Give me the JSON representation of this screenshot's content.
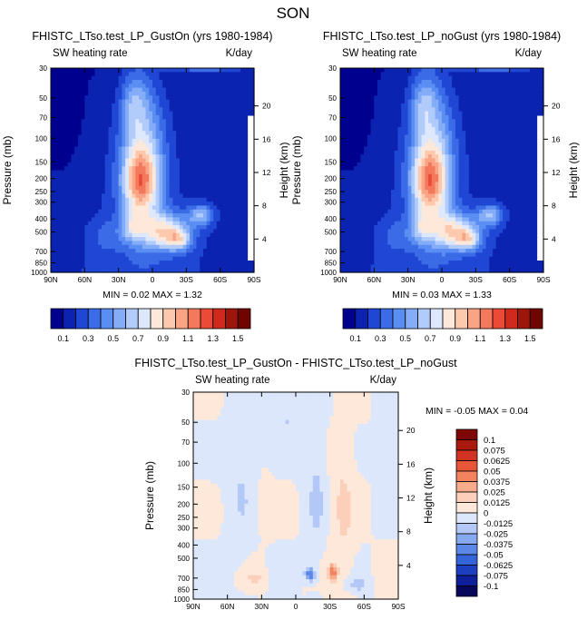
{
  "page_title": "SON",
  "colors": {
    "top_scale": [
      "#00008f",
      "#0b23b0",
      "#1f47d4",
      "#3b6be6",
      "#5b8ef2",
      "#85acf7",
      "#b1cbfa",
      "#dde8fd",
      "#fde8da",
      "#fcc9ae",
      "#f9a484",
      "#f4795c",
      "#ea4a36",
      "#cf2a1c",
      "#9e150c",
      "#700500"
    ],
    "diff_scale": [
      "#07075c",
      "#0d1f9a",
      "#1c3fbf",
      "#3564d8",
      "#5a87e8",
      "#86a9ef",
      "#b3c8f6",
      "#dce7fb",
      "#fde8da",
      "#fbcfb9",
      "#f8ac8c",
      "#f3825f",
      "#e8563a",
      "#d13223",
      "#a9190e",
      "#7e0606"
    ]
  },
  "chart_data": [
    {
      "type": "heatmap",
      "id": "gust_on",
      "title": "FHISTC_LTso.test_LP_GustOn (yrs 1980-1984)",
      "left_subtitle": "SW heating rate",
      "units": "K/day",
      "ylabel": "Pressure (mb)",
      "ylabel_right": "Height (km)",
      "x_ticks": [
        "90N",
        "60N",
        "30N",
        "0",
        "30S",
        "60S",
        "90S"
      ],
      "y_ticks": [
        "30",
        "50",
        "70",
        "100",
        "150",
        "200",
        "250",
        "300",
        "400",
        "500",
        "700",
        "850",
        "1000"
      ],
      "height_ticks": [
        "20",
        "16",
        "12",
        "8",
        "4"
      ],
      "min_max_label": "MIN =  0.02  MAX =  1.32",
      "min": 0.02,
      "max": 1.32,
      "levels": [
        "0.1",
        "0.3",
        "0.5",
        "0.7",
        "0.9",
        "1.1",
        "1.3",
        "1.5"
      ]
    },
    {
      "type": "heatmap",
      "id": "no_gust",
      "title": "FHISTC_LTso.test_LP_noGust (yrs 1980-1984)",
      "left_subtitle": "SW heating rate",
      "units": "K/day",
      "ylabel": "Pressure (mb)",
      "ylabel_right": "Height (km)",
      "x_ticks": [
        "90N",
        "60N",
        "30N",
        "0",
        "30S",
        "60S",
        "90S"
      ],
      "y_ticks": [
        "30",
        "50",
        "70",
        "100",
        "150",
        "200",
        "250",
        "300",
        "400",
        "500",
        "700",
        "850",
        "1000"
      ],
      "height_ticks": [
        "20",
        "16",
        "12",
        "8",
        "4"
      ],
      "min_max_label": "MIN =  0.03  MAX =  1.33",
      "min": 0.03,
      "max": 1.33,
      "levels": [
        "0.1",
        "0.3",
        "0.5",
        "0.7",
        "0.9",
        "1.1",
        "1.3",
        "1.5"
      ]
    },
    {
      "type": "heatmap",
      "id": "difference",
      "title": "FHISTC_LTso.test_LP_GustOn - FHISTC_LTso.test_LP_noGust",
      "left_subtitle": "SW heating rate",
      "units": "K/day",
      "ylabel": "Pressure (mb)",
      "ylabel_right": "Height (km)",
      "x_ticks": [
        "90N",
        "60N",
        "30N",
        "0",
        "30S",
        "60S",
        "90S"
      ],
      "y_ticks": [
        "30",
        "50",
        "70",
        "100",
        "150",
        "200",
        "250",
        "300",
        "400",
        "500",
        "700",
        "850",
        "1000"
      ],
      "height_ticks": [
        "20",
        "16",
        "12",
        "8",
        "4"
      ],
      "min_max_label": "MIN =  -0.05   MAX =   0.04",
      "min": -0.05,
      "max": 0.04,
      "levels": [
        "0.1",
        "0.075",
        "0.0625",
        "0.05",
        "0.0375",
        "0.025",
        "0.0125",
        "0",
        "-0.0125",
        "-0.025",
        "-0.0375",
        "-0.05",
        "-0.0625",
        "-0.075",
        "-0.1"
      ]
    }
  ]
}
